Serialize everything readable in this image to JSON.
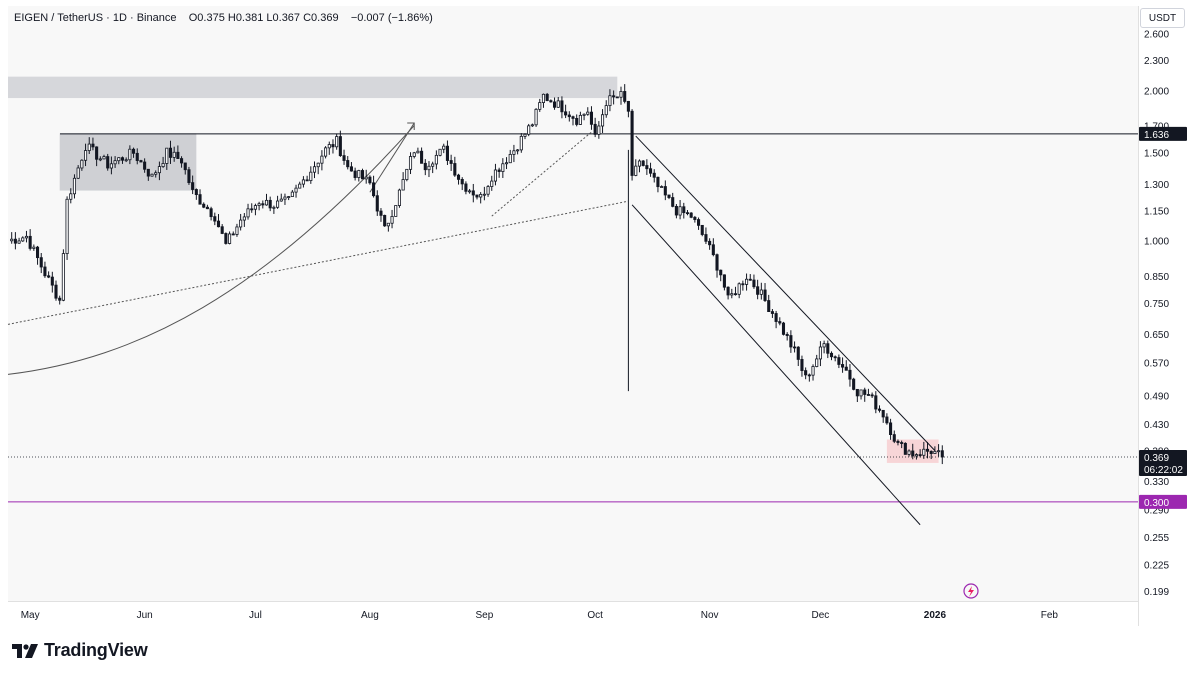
{
  "header": {
    "symbol": "EIGEN / TetherUS",
    "interval": "1D",
    "exchange": "Binance",
    "ohlc": "O0.375  H0.381  L0.367  C0.369",
    "change": "−0.007 (−1.86%)"
  },
  "price_scale": {
    "currency": "USDT",
    "ticks": [
      "2.600",
      "2.300",
      "2.000",
      "1.700",
      "1.500",
      "1.300",
      "1.150",
      "1.000",
      "0.850",
      "0.750",
      "0.650",
      "0.570",
      "0.490",
      "0.430",
      "0.380",
      "0.330",
      "0.290",
      "0.255",
      "0.225",
      "0.199"
    ]
  },
  "time_scale": {
    "labels": [
      "May",
      "Jun",
      "Jul",
      "Aug",
      "Sep",
      "Oct",
      "Nov",
      "Dec",
      "2026",
      "Feb"
    ]
  },
  "badges": {
    "resistance": "1.636",
    "last_price": "0.369",
    "countdown": "06:22:02",
    "support": "0.300"
  },
  "brand": {
    "name": "TradingView"
  },
  "colors": {
    "candle": "#131722",
    "support_line": "#9c27b0",
    "box_fill": "#b2b5be",
    "pink_box": "#f7c9cc"
  },
  "chart_data": {
    "type": "candlestick",
    "title": "",
    "log_scale": true,
    "ylim": [
      0.19,
      2.95
    ],
    "grid": false,
    "horizontal_lines": [
      1.636,
      0.369,
      0.3
    ],
    "series": [
      {
        "name": "",
        "anchors": [
          [
            "2025-04-25",
            1.0
          ],
          [
            "2025-04-30",
            1.02
          ],
          [
            "2025-05-05",
            0.86
          ],
          [
            "2025-05-09",
            0.76
          ],
          [
            "2025-05-11",
            1.2
          ],
          [
            "2025-05-16",
            1.55
          ],
          [
            "2025-05-22",
            1.42
          ],
          [
            "2025-05-29",
            1.5
          ],
          [
            "2025-06-03",
            1.34
          ],
          [
            "2025-06-07",
            1.5
          ],
          [
            "2025-06-11",
            1.45
          ],
          [
            "2025-06-14",
            1.25
          ],
          [
            "2025-06-20",
            1.12
          ],
          [
            "2025-06-23",
            0.98
          ],
          [
            "2025-06-27",
            1.1
          ],
          [
            "2025-07-02",
            1.2
          ],
          [
            "2025-07-06",
            1.18
          ],
          [
            "2025-07-10",
            1.2
          ],
          [
            "2025-07-14",
            1.32
          ],
          [
            "2025-07-20",
            1.52
          ],
          [
            "2025-07-23",
            1.58
          ],
          [
            "2025-07-26",
            1.4
          ],
          [
            "2025-08-01",
            1.3
          ],
          [
            "2025-08-05",
            1.05
          ],
          [
            "2025-08-09",
            1.25
          ],
          [
            "2025-08-13",
            1.52
          ],
          [
            "2025-08-16",
            1.42
          ],
          [
            "2025-08-21",
            1.52
          ],
          [
            "2025-08-26",
            1.3
          ],
          [
            "2025-08-31",
            1.22
          ],
          [
            "2025-09-03",
            1.35
          ],
          [
            "2025-09-09",
            1.52
          ],
          [
            "2025-09-14",
            1.72
          ],
          [
            "2025-09-17",
            1.95
          ],
          [
            "2025-09-22",
            1.85
          ],
          [
            "2025-09-26",
            1.75
          ],
          [
            "2025-09-29",
            1.82
          ],
          [
            "2025-10-01",
            1.6
          ],
          [
            "2025-10-04",
            1.9
          ],
          [
            "2025-10-08",
            1.95
          ],
          [
            "2025-10-10",
            1.82
          ],
          [
            "2025-10-11",
            1.32
          ],
          [
            "2025-10-13",
            1.45
          ],
          [
            "2025-10-18",
            1.28
          ],
          [
            "2025-10-23",
            1.15
          ],
          [
            "2025-10-27",
            1.12
          ],
          [
            "2025-10-31",
            1.0
          ],
          [
            "2025-11-04",
            0.86
          ],
          [
            "2025-11-06",
            0.76
          ],
          [
            "2025-11-11",
            0.85
          ],
          [
            "2025-11-14",
            0.8
          ],
          [
            "2025-11-19",
            0.7
          ],
          [
            "2025-11-24",
            0.6
          ],
          [
            "2025-11-27",
            0.53
          ],
          [
            "2025-12-02",
            0.62
          ],
          [
            "2025-12-08",
            0.55
          ],
          [
            "2025-12-11",
            0.5
          ],
          [
            "2025-12-14",
            0.49
          ],
          [
            "2025-12-18",
            0.45
          ],
          [
            "2025-12-22",
            0.39
          ],
          [
            "2025-12-26",
            0.375
          ],
          [
            "2025-12-31",
            0.38
          ],
          [
            "2026-01-03",
            0.369
          ]
        ]
      }
    ],
    "drawings": {
      "range_box": {
        "start": "2025-05-09",
        "end": "2025-06-15",
        "top": 1.64,
        "bottom": 1.26
      },
      "top_band": {
        "start": "2025-04-25",
        "end": "2025-10-07",
        "top": 2.13,
        "bottom": 1.93
      },
      "consolidation_box": {
        "start": "2025-12-19",
        "end": "2026-01-02",
        "top": 0.4,
        "bottom": 0.359
      },
      "channel_upper": [
        [
          "2025-10-12",
          1.62
        ],
        [
          "2026-01-01",
          0.38
        ]
      ],
      "channel_lower": [
        [
          "2025-10-11",
          1.18
        ],
        [
          "2025-12-28",
          0.27
        ]
      ],
      "trendline_dotted": [
        [
          "2025-04-25",
          0.68
        ],
        [
          "2025-10-10",
          1.2
        ]
      ],
      "arrow_line": [
        [
          "2025-08-01",
          1.25
        ],
        [
          "2025-08-13",
          1.72
        ]
      ],
      "arrow_line_2": [
        [
          "2025-09-03",
          1.12
        ],
        [
          "2025-09-30",
          1.65
        ]
      ],
      "arc": [
        [
          "2025-04-25",
          0.54
        ],
        [
          "2025-05-30",
          0.58
        ],
        [
          "2025-07-03",
          0.78
        ],
        [
          "2025-08-13",
          1.7
        ]
      ],
      "vertical_line": {
        "date": "2025-10-10",
        "from": 0.5,
        "to": 1.52
      }
    }
  }
}
